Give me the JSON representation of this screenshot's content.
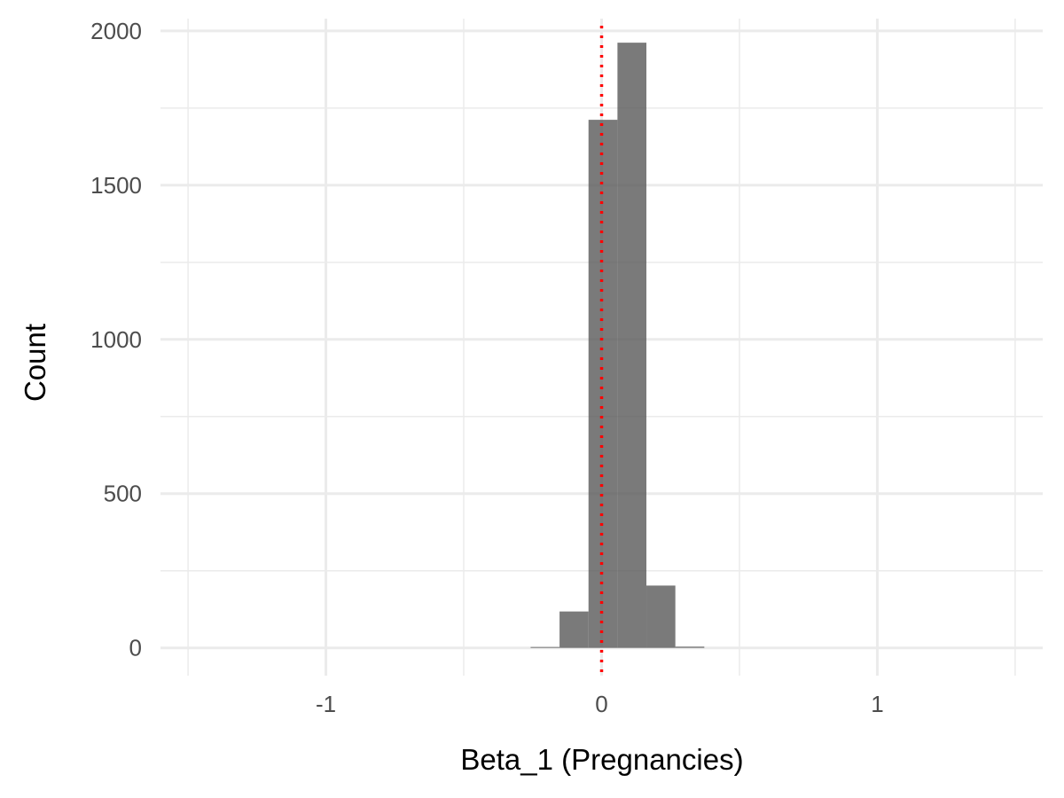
{
  "chart_data": {
    "type": "bar",
    "title": "",
    "xlabel": "Beta_1 (Pregnancies)",
    "ylabel": "Count",
    "xlim": [
      -1.6,
      1.6
    ],
    "ylim": [
      -90,
      2040
    ],
    "x_ticks": [
      {
        "value": -1,
        "label": "-1"
      },
      {
        "value": 0,
        "label": "0"
      },
      {
        "value": 1,
        "label": "1"
      }
    ],
    "x_minor_ticks": [
      -1.5,
      -0.5,
      0.5,
      1.5
    ],
    "y_ticks": [
      {
        "value": 0,
        "label": "0"
      },
      {
        "value": 500,
        "label": "500"
      },
      {
        "value": 1000,
        "label": "1000"
      },
      {
        "value": 1500,
        "label": "1500"
      },
      {
        "value": 2000,
        "label": "2000"
      }
    ],
    "y_minor_ticks": [
      250,
      750,
      1250,
      1750
    ],
    "bin_width": 0.105,
    "bins": [
      {
        "x0": -0.2575,
        "x1": -0.1525,
        "count": 2
      },
      {
        "x0": -0.1525,
        "x1": -0.0475,
        "count": 118
      },
      {
        "x0": -0.0475,
        "x1": 0.0575,
        "count": 1712
      },
      {
        "x0": 0.0575,
        "x1": 0.1625,
        "count": 1962
      },
      {
        "x0": 0.1625,
        "x1": 0.2675,
        "count": 202
      },
      {
        "x0": 0.2675,
        "x1": 0.3725,
        "count": 4
      }
    ],
    "reference_line": {
      "x": 0,
      "style": "dotted"
    },
    "grid": true,
    "legend": "none",
    "colors": {
      "bar": "#595959",
      "bar_opacity": 0.8,
      "reference_line": "#ff0000",
      "grid_major": "#ebebeb",
      "grid_minor": "#ebebeb"
    }
  }
}
